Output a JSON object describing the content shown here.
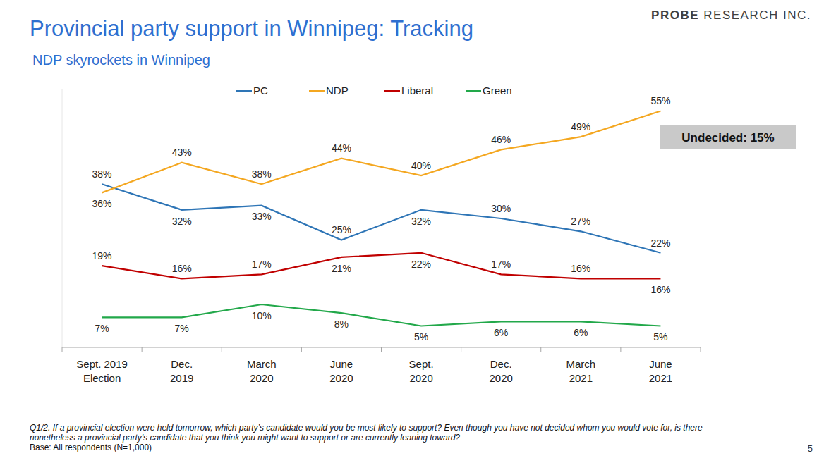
{
  "chart_data": {
    "type": "line",
    "title": "Provincial party support in Winnipeg: Tracking",
    "subtitle": "NDP skyrockets in Winnipeg",
    "logo": "PROBE RESEARCH INC.",
    "annotation": "Undecided: 15%",
    "footnote": [
      "Q1/2. If a provincial election were held tomorrow, which party’s candidate would you be most likely to support? Even though you have not decided whom you would vote for, is there",
      "nonetheless a provincial party's candidate that you think you might want to support or are currently leaning toward?",
      "Base: All respondents (N=1,000)"
    ],
    "page_number": "5",
    "categories": [
      "Sept. 2019\nElection",
      "Dec.\n2019",
      "March\n2020",
      "June\n2020",
      "Sept.\n2020",
      "Dec.\n2020",
      "March\n2021",
      "June\n2021"
    ],
    "series": [
      {
        "name": "PC",
        "color": "#2e75b6",
        "values": [
          38,
          32,
          33,
          25,
          32,
          30,
          27,
          22
        ]
      },
      {
        "name": "NDP",
        "color": "#f4a720",
        "values": [
          36,
          43,
          38,
          44,
          40,
          46,
          49,
          55
        ]
      },
      {
        "name": "Liberal",
        "color": "#c00000",
        "values": [
          19,
          16,
          17,
          21,
          22,
          17,
          16,
          16
        ]
      },
      {
        "name": "Green",
        "color": "#22a84a",
        "values": [
          7,
          7,
          10,
          8,
          5,
          6,
          6,
          5
        ]
      }
    ],
    "value_labels": [
      [
        "38%",
        "32%",
        "33%",
        "25%",
        "32%",
        "30%",
        "27%",
        "22%"
      ],
      [
        "36%",
        "43%",
        "38%",
        "44%",
        "40%",
        "46%",
        "49%",
        "55%"
      ],
      [
        "19%",
        "16%",
        "17%",
        "21%",
        "22%",
        "17%",
        "16%",
        "16%"
      ],
      [
        "7%",
        "7%",
        "10%",
        "8%",
        "5%",
        "6%",
        "6%",
        "5%"
      ]
    ],
    "ylim": [
      0,
      60
    ],
    "data_labels": true,
    "tick_labels": "x",
    "legend": "top",
    "grid": false
  }
}
